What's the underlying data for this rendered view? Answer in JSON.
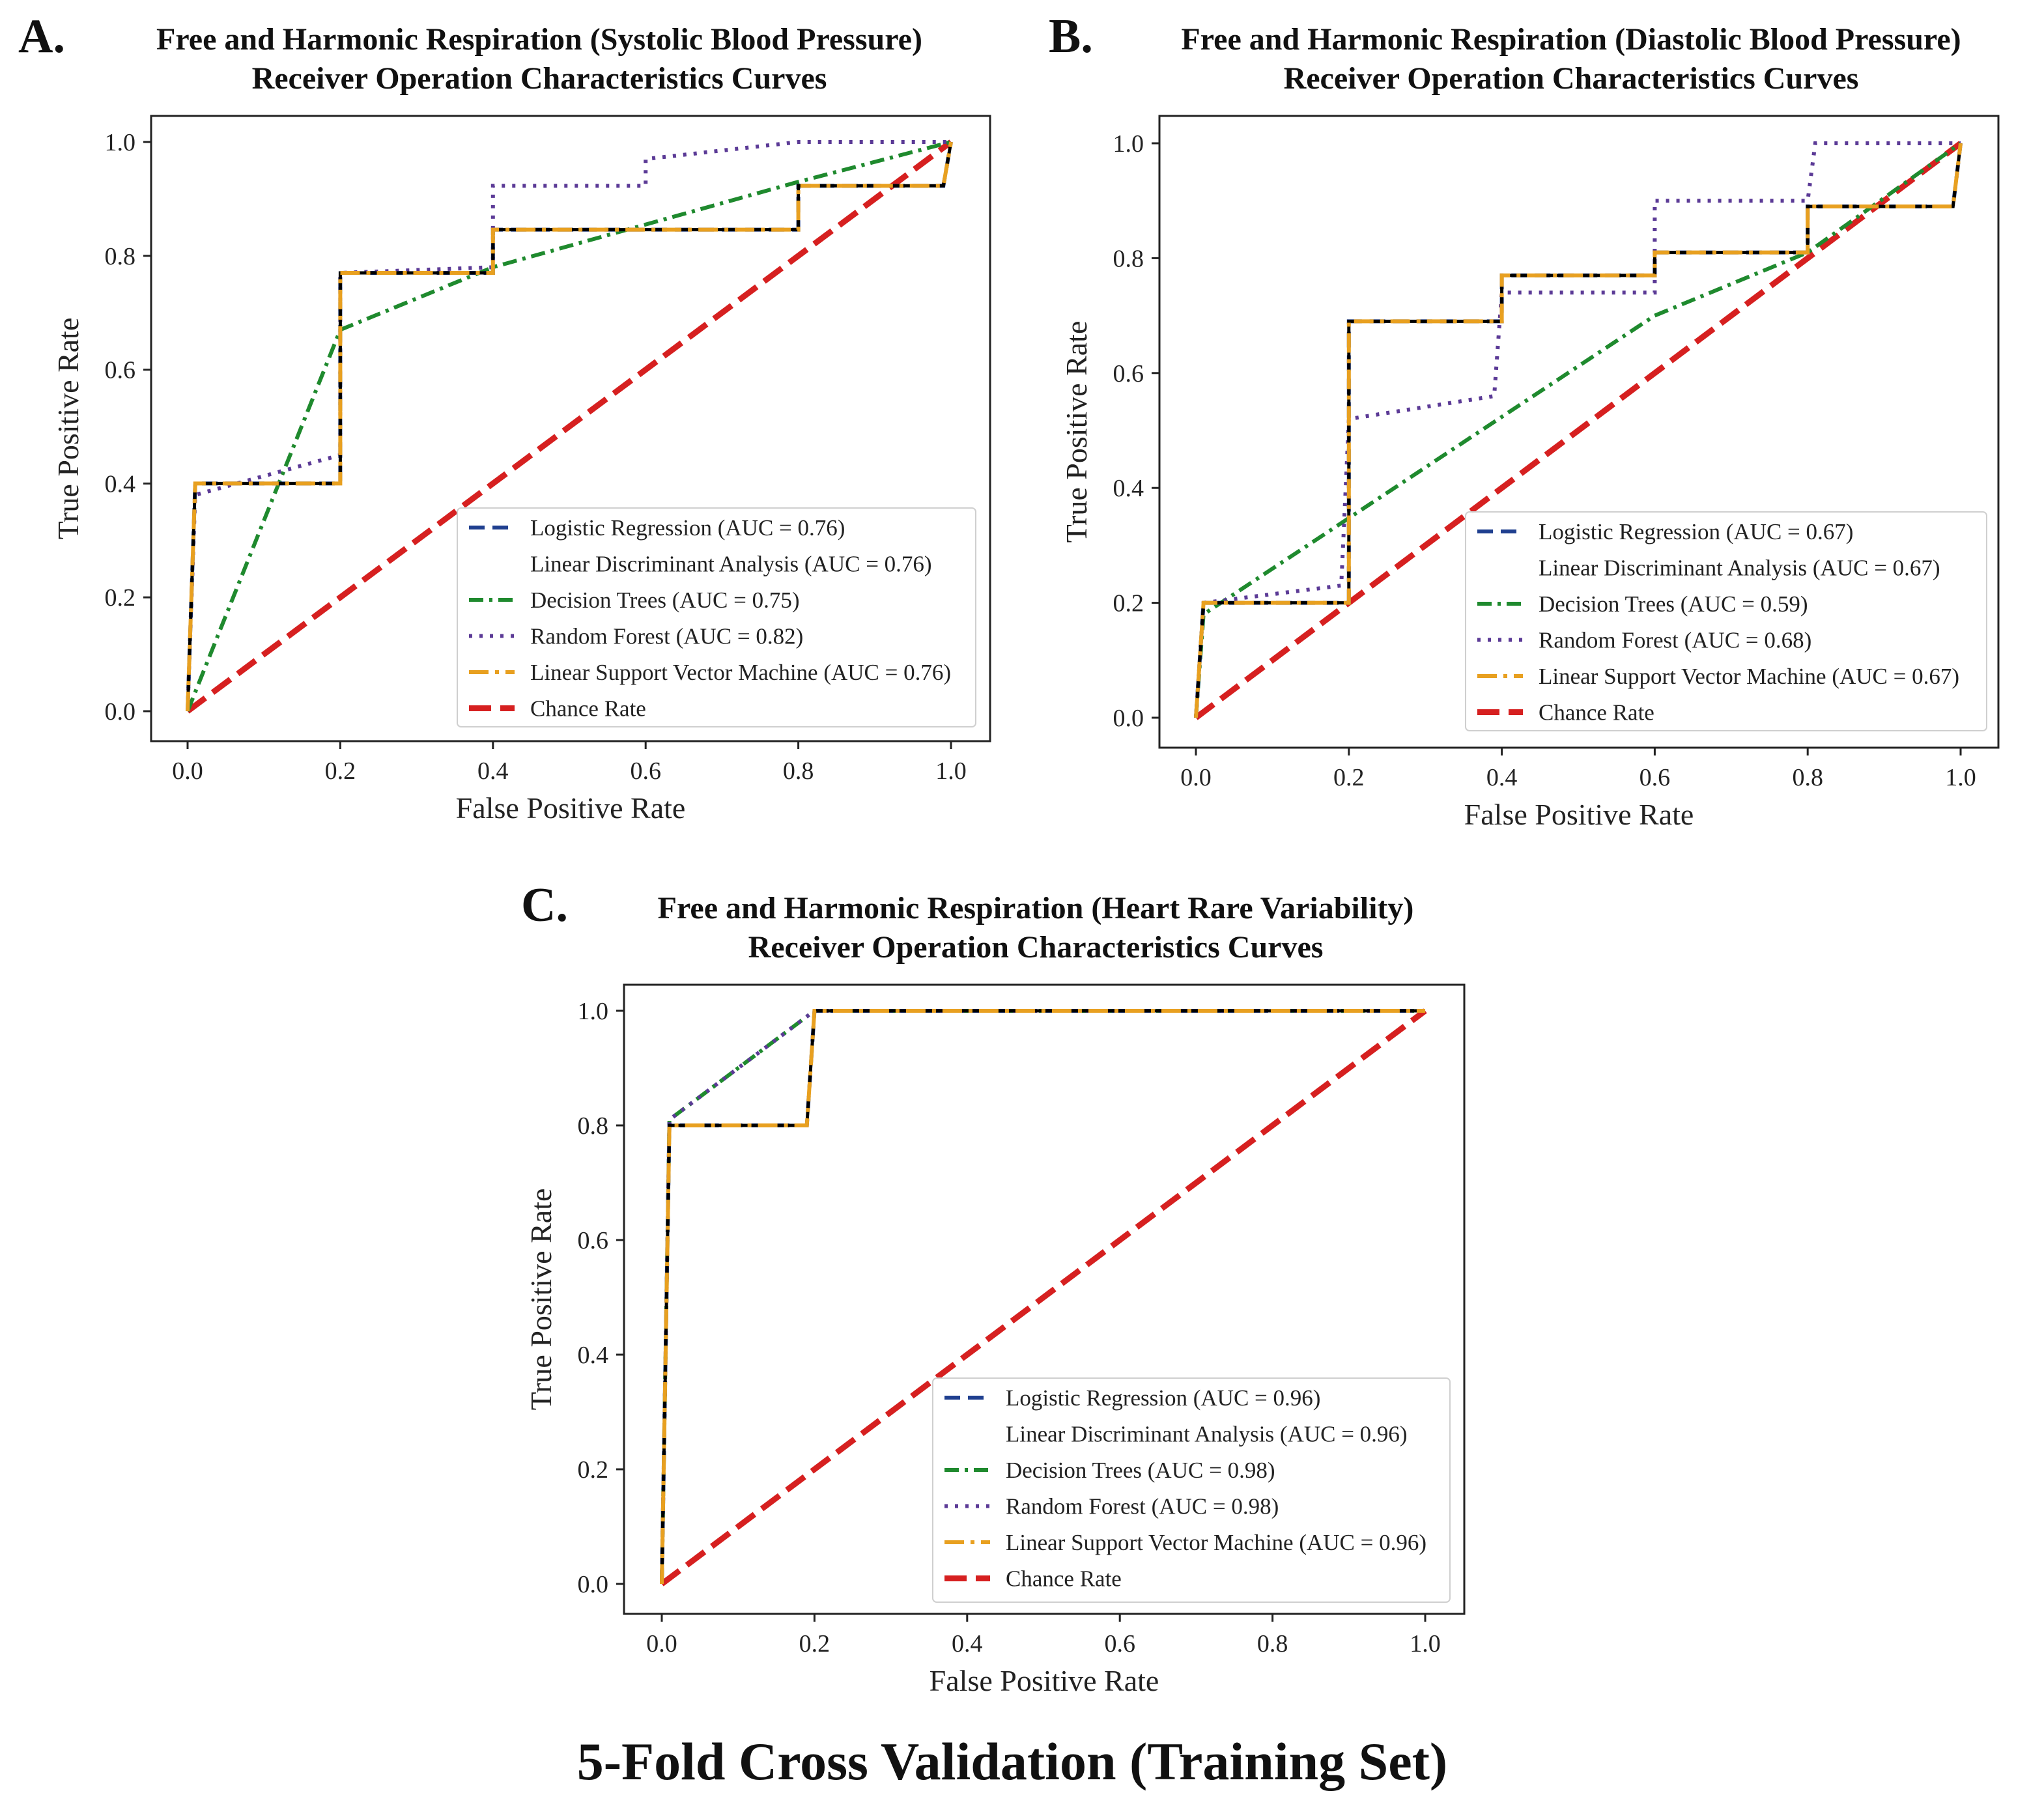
{
  "footer": "5-Fold Cross Validation (Training Set)",
  "colors": {
    "logistic": "#1f3f8f",
    "lda": "#000000",
    "tree": "#1f8a2e",
    "forest": "#5b3a96",
    "svm": "#e8a020",
    "chance": "#d62020"
  },
  "chart_data": [
    {
      "type": "line",
      "panel": "A.",
      "title": "Free and Harmonic Respiration (Systolic Blood Pressure)",
      "subtitle": "Receiver Operation Characteristics Curves",
      "xlabel": "False Positive Rate",
      "ylabel": "True Positive Rate",
      "xlim": [
        0,
        1
      ],
      "ylim": [
        0,
        1
      ],
      "xticks": [
        "0.0",
        "0.2",
        "0.4",
        "0.6",
        "0.8",
        "1.0"
      ],
      "yticks": [
        "0.0",
        "0.2",
        "0.4",
        "0.6",
        "0.8",
        "1.0"
      ],
      "legend_position": "lower-right",
      "series": [
        {
          "key": "logistic",
          "name": "Logistic Regression (AUC = 0.76)",
          "style": "dashed",
          "x": [
            0,
            0.01,
            0.2,
            0.2,
            0.4,
            0.4,
            0.8,
            0.8,
            0.99,
            1.0
          ],
          "y": [
            0,
            0.4,
            0.4,
            0.77,
            0.77,
            0.846,
            0.846,
            0.923,
            0.923,
            1.0
          ]
        },
        {
          "key": "lda",
          "name": "Linear Discriminant Analysis (AUC = 0.76)",
          "style": "solid",
          "x": [
            0,
            0.01,
            0.2,
            0.2,
            0.4,
            0.4,
            0.8,
            0.8,
            0.99,
            1.0
          ],
          "y": [
            0,
            0.4,
            0.4,
            0.77,
            0.77,
            0.846,
            0.846,
            0.923,
            0.923,
            1.0
          ]
        },
        {
          "key": "tree",
          "name": "Decision Trees (AUC = 0.75)",
          "style": "dashdot",
          "x": [
            0,
            0.2,
            0.4,
            0.8,
            1.0
          ],
          "y": [
            0,
            0.67,
            0.78,
            0.93,
            1.0
          ]
        },
        {
          "key": "forest",
          "name": "Random Forest (AUC = 0.82)",
          "style": "dotted",
          "x": [
            0,
            0.01,
            0.2,
            0.2,
            0.4,
            0.4,
            0.6,
            0.6,
            0.8,
            1.0
          ],
          "y": [
            0,
            0.38,
            0.45,
            0.77,
            0.78,
            0.923,
            0.923,
            0.97,
            1.0,
            1.0
          ]
        },
        {
          "key": "svm",
          "name": "Linear Support Vector Machine (AUC = 0.76)",
          "style": "dashdot-long",
          "x": [
            0,
            0.01,
            0.2,
            0.2,
            0.4,
            0.4,
            0.8,
            0.8,
            0.99,
            1.0
          ],
          "y": [
            0,
            0.4,
            0.4,
            0.77,
            0.77,
            0.846,
            0.846,
            0.923,
            0.923,
            1.0
          ]
        },
        {
          "key": "chance",
          "name": "Chance Rate",
          "style": "dashed-thick",
          "x": [
            0,
            1
          ],
          "y": [
            0,
            1
          ]
        }
      ]
    },
    {
      "type": "line",
      "panel": "B.",
      "title": "Free and Harmonic Respiration (Diastolic Blood Pressure)",
      "subtitle": "Receiver Operation Characteristics Curves",
      "xlabel": "False Positive Rate",
      "ylabel": "True Positive Rate",
      "xlim": [
        0,
        1
      ],
      "ylim": [
        0,
        1
      ],
      "xticks": [
        "0.0",
        "0.2",
        "0.4",
        "0.6",
        "0.8",
        "1.0"
      ],
      "yticks": [
        "0.0",
        "0.2",
        "0.4",
        "0.6",
        "0.8",
        "1.0"
      ],
      "legend_position": "lower-right",
      "series": [
        {
          "key": "logistic",
          "name": "Logistic Regression (AUC = 0.67)",
          "style": "dashed",
          "x": [
            0,
            0.01,
            0.2,
            0.2,
            0.4,
            0.4,
            0.6,
            0.6,
            0.8,
            0.8,
            0.99,
            1.0
          ],
          "y": [
            0,
            0.2,
            0.2,
            0.69,
            0.69,
            0.77,
            0.77,
            0.81,
            0.81,
            0.89,
            0.89,
            1.0
          ]
        },
        {
          "key": "lda",
          "name": "Linear Discriminant Analysis (AUC = 0.67)",
          "style": "solid",
          "x": [
            0,
            0.01,
            0.2,
            0.2,
            0.4,
            0.4,
            0.6,
            0.6,
            0.8,
            0.8,
            0.99,
            1.0
          ],
          "y": [
            0,
            0.2,
            0.2,
            0.69,
            0.69,
            0.77,
            0.77,
            0.81,
            0.81,
            0.89,
            0.89,
            1.0
          ]
        },
        {
          "key": "tree",
          "name": "Decision Trees (AUC = 0.59)",
          "style": "dashdot",
          "x": [
            0,
            0.01,
            0.6,
            0.8,
            1.0
          ],
          "y": [
            0,
            0.18,
            0.7,
            0.81,
            1.0
          ]
        },
        {
          "key": "forest",
          "name": "Random Forest (AUC = 0.68)",
          "style": "dotted",
          "x": [
            0,
            0.01,
            0.19,
            0.2,
            0.39,
            0.4,
            0.6,
            0.6,
            0.8,
            0.81,
            1.0
          ],
          "y": [
            0,
            0.2,
            0.23,
            0.52,
            0.56,
            0.74,
            0.74,
            0.9,
            0.9,
            1.0,
            1.0
          ]
        },
        {
          "key": "svm",
          "name": "Linear Support Vector Machine (AUC = 0.67)",
          "style": "dashdot-long",
          "x": [
            0,
            0.01,
            0.2,
            0.2,
            0.4,
            0.4,
            0.6,
            0.6,
            0.8,
            0.8,
            0.99,
            1.0
          ],
          "y": [
            0,
            0.2,
            0.2,
            0.69,
            0.69,
            0.77,
            0.77,
            0.81,
            0.81,
            0.89,
            0.89,
            1.0
          ]
        },
        {
          "key": "chance",
          "name": "Chance Rate",
          "style": "dashed-thick",
          "x": [
            0,
            1
          ],
          "y": [
            0,
            1
          ]
        }
      ]
    },
    {
      "type": "line",
      "panel": "C.",
      "title": "Free and Harmonic Respiration (Heart Rare Variability)",
      "subtitle": "Receiver Operation Characteristics Curves",
      "xlabel": "False Positive Rate",
      "ylabel": "True Positive Rate",
      "xlim": [
        0,
        1
      ],
      "ylim": [
        0,
        1
      ],
      "xticks": [
        "0.0",
        "0.2",
        "0.4",
        "0.6",
        "0.8",
        "1.0"
      ],
      "yticks": [
        "0.0",
        "0.2",
        "0.4",
        "0.6",
        "0.8",
        "1.0"
      ],
      "legend_position": "lower-right",
      "series": [
        {
          "key": "logistic",
          "name": "Logistic Regression (AUC = 0.96)",
          "style": "dashed",
          "x": [
            0,
            0.01,
            0.19,
            0.2,
            1.0
          ],
          "y": [
            0,
            0.8,
            0.8,
            1.0,
            1.0
          ]
        },
        {
          "key": "lda",
          "name": "Linear Discriminant Analysis (AUC = 0.96)",
          "style": "solid",
          "x": [
            0,
            0.01,
            0.19,
            0.2,
            1.0
          ],
          "y": [
            0,
            0.8,
            0.8,
            1.0,
            1.0
          ]
        },
        {
          "key": "tree",
          "name": "Decision Trees (AUC = 0.98)",
          "style": "dashdot",
          "x": [
            0,
            0.01,
            0.2,
            1.0
          ],
          "y": [
            0,
            0.81,
            1.0,
            1.0
          ]
        },
        {
          "key": "forest",
          "name": "Random Forest (AUC = 0.98)",
          "style": "dotted",
          "x": [
            0,
            0.01,
            0.2,
            1.0
          ],
          "y": [
            0,
            0.81,
            1.0,
            1.0
          ]
        },
        {
          "key": "svm",
          "name": "Linear Support Vector Machine (AUC = 0.96)",
          "style": "dashdot-long",
          "x": [
            0,
            0.01,
            0.19,
            0.2,
            1.0
          ],
          "y": [
            0,
            0.8,
            0.8,
            1.0,
            1.0
          ]
        },
        {
          "key": "chance",
          "name": "Chance Rate",
          "style": "dashed-thick",
          "x": [
            0,
            1
          ],
          "y": [
            0,
            1
          ]
        }
      ]
    }
  ]
}
